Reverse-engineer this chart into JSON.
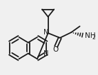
{
  "bg_color": "#f0f0f0",
  "line_color": "#1a1a1a",
  "lw": 1.3,
  "figsize": [
    1.42,
    1.09
  ],
  "dpi": 100,
  "xlim": [
    0,
    142
  ],
  "ylim": [
    0,
    109
  ]
}
